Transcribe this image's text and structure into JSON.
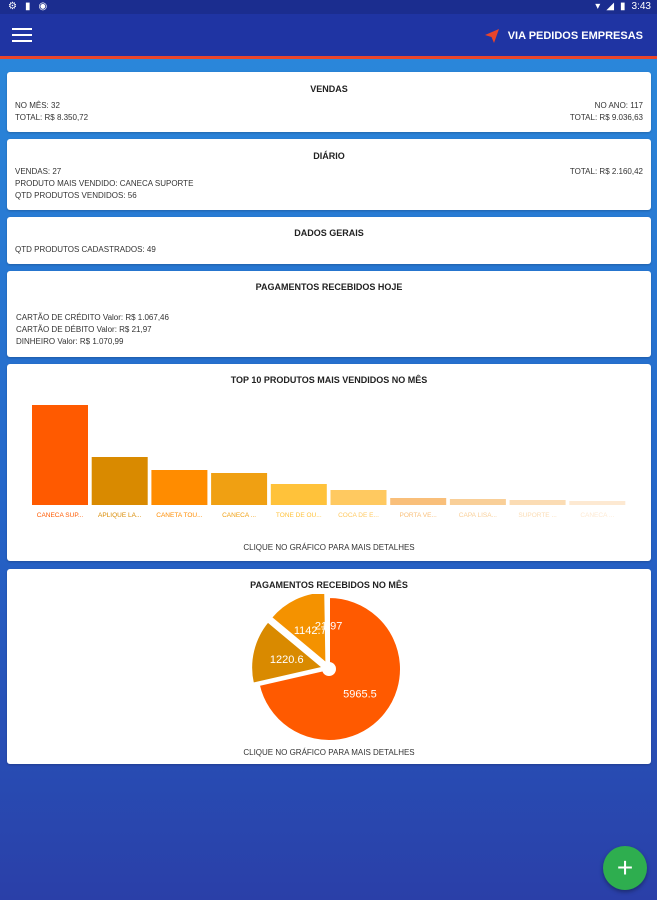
{
  "status": {
    "time": "3:43"
  },
  "app": {
    "title": "VIA PEDIDOS EMPRESAS"
  },
  "vendas": {
    "title": "VENDAS",
    "no_mes": "NO MÊS: 32",
    "total_mes": "TOTAL: R$ 8.350,72",
    "no_ano": "NO ANO: 117",
    "total_ano": "TOTAL: R$ 9.036,63"
  },
  "diario": {
    "title": "DIÁRIO",
    "vendas": "VENDAS: 27",
    "produto": "PRODUTO MAIS VENDIDO: CANECA SUPORTE",
    "qtd": "QTD PRODUTOS VENDIDOS: 56",
    "total": "TOTAL: R$ 2.160,42"
  },
  "dados": {
    "title": "DADOS GERAIS",
    "qtd_cadastrados": "QTD PRODUTOS CADASTRADOS: 49"
  },
  "pagamentos_hoje": {
    "title": "PAGAMENTOS RECEBIDOS HOJE",
    "credito": "CARTÃO DE CRÉDITO Valor: R$ 1.067,46",
    "debito": "CARTÃO DE DÉBITO Valor: R$ 21,97",
    "dinheiro": "DINHEIRO Valor: R$ 1.070,99"
  },
  "chart_data": [
    {
      "type": "bar",
      "title": "TOP 10 PRODUTOS MAIS VENDIDOS NO MÊS",
      "categories": [
        "CANECA SUP...",
        "APLIQUE LA...",
        "CANETA TOU...",
        "CANECA ...",
        "TONE DE OU...",
        "COCA DE E...",
        "PORTA VE...",
        "CAPA LISA...",
        "SUPORTE ...",
        "CANECA ..."
      ],
      "values": [
        100,
        48,
        35,
        32,
        21,
        15,
        7,
        6,
        5,
        4
      ],
      "colors": [
        "#ff5a00",
        "#d98a00",
        "#ff8c00",
        "#f0a012",
        "#ffc23a",
        "#ffc960",
        "#f9bf7a",
        "#f9cf98",
        "#fbdcb4",
        "#fde9d2"
      ],
      "footer": "CLIQUE NO GRÁFICO PARA MAIS DETALHES"
    },
    {
      "type": "pie",
      "title": "PAGAMENTOS RECEBIDOS NO MÊS",
      "labels": [
        "5965.5",
        "1220.6",
        "1142.7",
        "21.97"
      ],
      "values": [
        5965.5,
        1220.6,
        1142.7,
        21.97
      ],
      "colors": [
        "#ff5a00",
        "#d98a00",
        "#f49200",
        "#f7b84a"
      ],
      "footer": "CLIQUE NO GRÁFICO PARA MAIS DETALHES"
    }
  ]
}
